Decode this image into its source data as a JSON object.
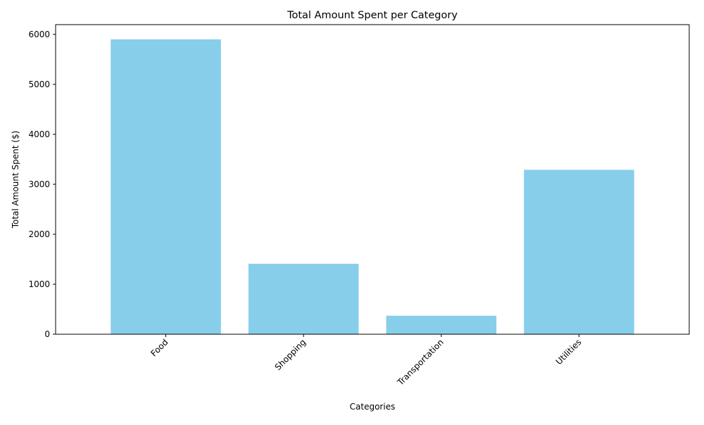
{
  "chart_data": {
    "type": "bar",
    "title": "Total Amount Spent per Category",
    "xlabel": "Categories",
    "ylabel": "Total Amount Spent ($)",
    "categories": [
      "Food",
      "Shopping",
      "Transportation",
      "Utilities"
    ],
    "values": [
      5900,
      1410,
      370,
      3290
    ],
    "ylim": [
      0,
      6195
    ],
    "yticks": [
      0,
      1000,
      2000,
      3000,
      4000,
      5000,
      6000
    ],
    "xtick_rotation": 45,
    "bar_color": "#87CEEB",
    "grid": false,
    "legend": "none"
  }
}
